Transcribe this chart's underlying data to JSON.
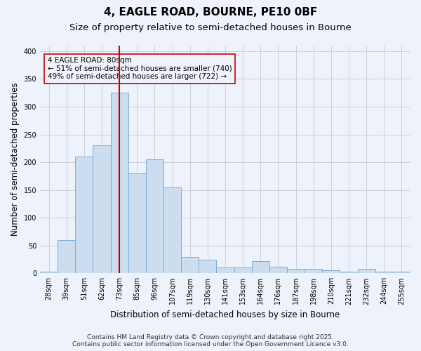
{
  "title": "4, EAGLE ROAD, BOURNE, PE10 0BF",
  "subtitle": "Size of property relative to semi-detached houses in Bourne",
  "xlabel": "Distribution of semi-detached houses by size in Bourne",
  "ylabel": "Number of semi-detached properties",
  "categories": [
    "28sqm",
    "39sqm",
    "51sqm",
    "62sqm",
    "73sqm",
    "85sqm",
    "96sqm",
    "107sqm",
    "119sqm",
    "130sqm",
    "141sqm",
    "153sqm",
    "164sqm",
    "176sqm",
    "187sqm",
    "198sqm",
    "210sqm",
    "221sqm",
    "232sqm",
    "244sqm",
    "255sqm"
  ],
  "values": [
    3,
    60,
    210,
    230,
    325,
    180,
    205,
    155,
    30,
    25,
    10,
    10,
    22,
    12,
    8,
    8,
    5,
    3,
    8,
    3,
    3
  ],
  "bar_color": "#ccddf0",
  "bar_edgecolor": "#7aafd4",
  "vline_color": "#cc0000",
  "vline_x_index": 4,
  "annotation_text": "4 EAGLE ROAD: 80sqm\n← 51% of semi-detached houses are smaller (740)\n49% of semi-detached houses are larger (722) →",
  "annotation_box_edgecolor": "#cc0000",
  "ylim": [
    0,
    410
  ],
  "yticks": [
    0,
    50,
    100,
    150,
    200,
    250,
    300,
    350,
    400
  ],
  "grid_color": "#c8c8d8",
  "background_color": "#eef2fa",
  "footer_line1": "Contains HM Land Registry data © Crown copyright and database right 2025.",
  "footer_line2": "Contains public sector information licensed under the Open Government Licence v3.0.",
  "title_fontsize": 11,
  "subtitle_fontsize": 9.5,
  "axis_label_fontsize": 8.5,
  "tick_fontsize": 7,
  "annotation_fontsize": 7.5,
  "footer_fontsize": 6.5
}
